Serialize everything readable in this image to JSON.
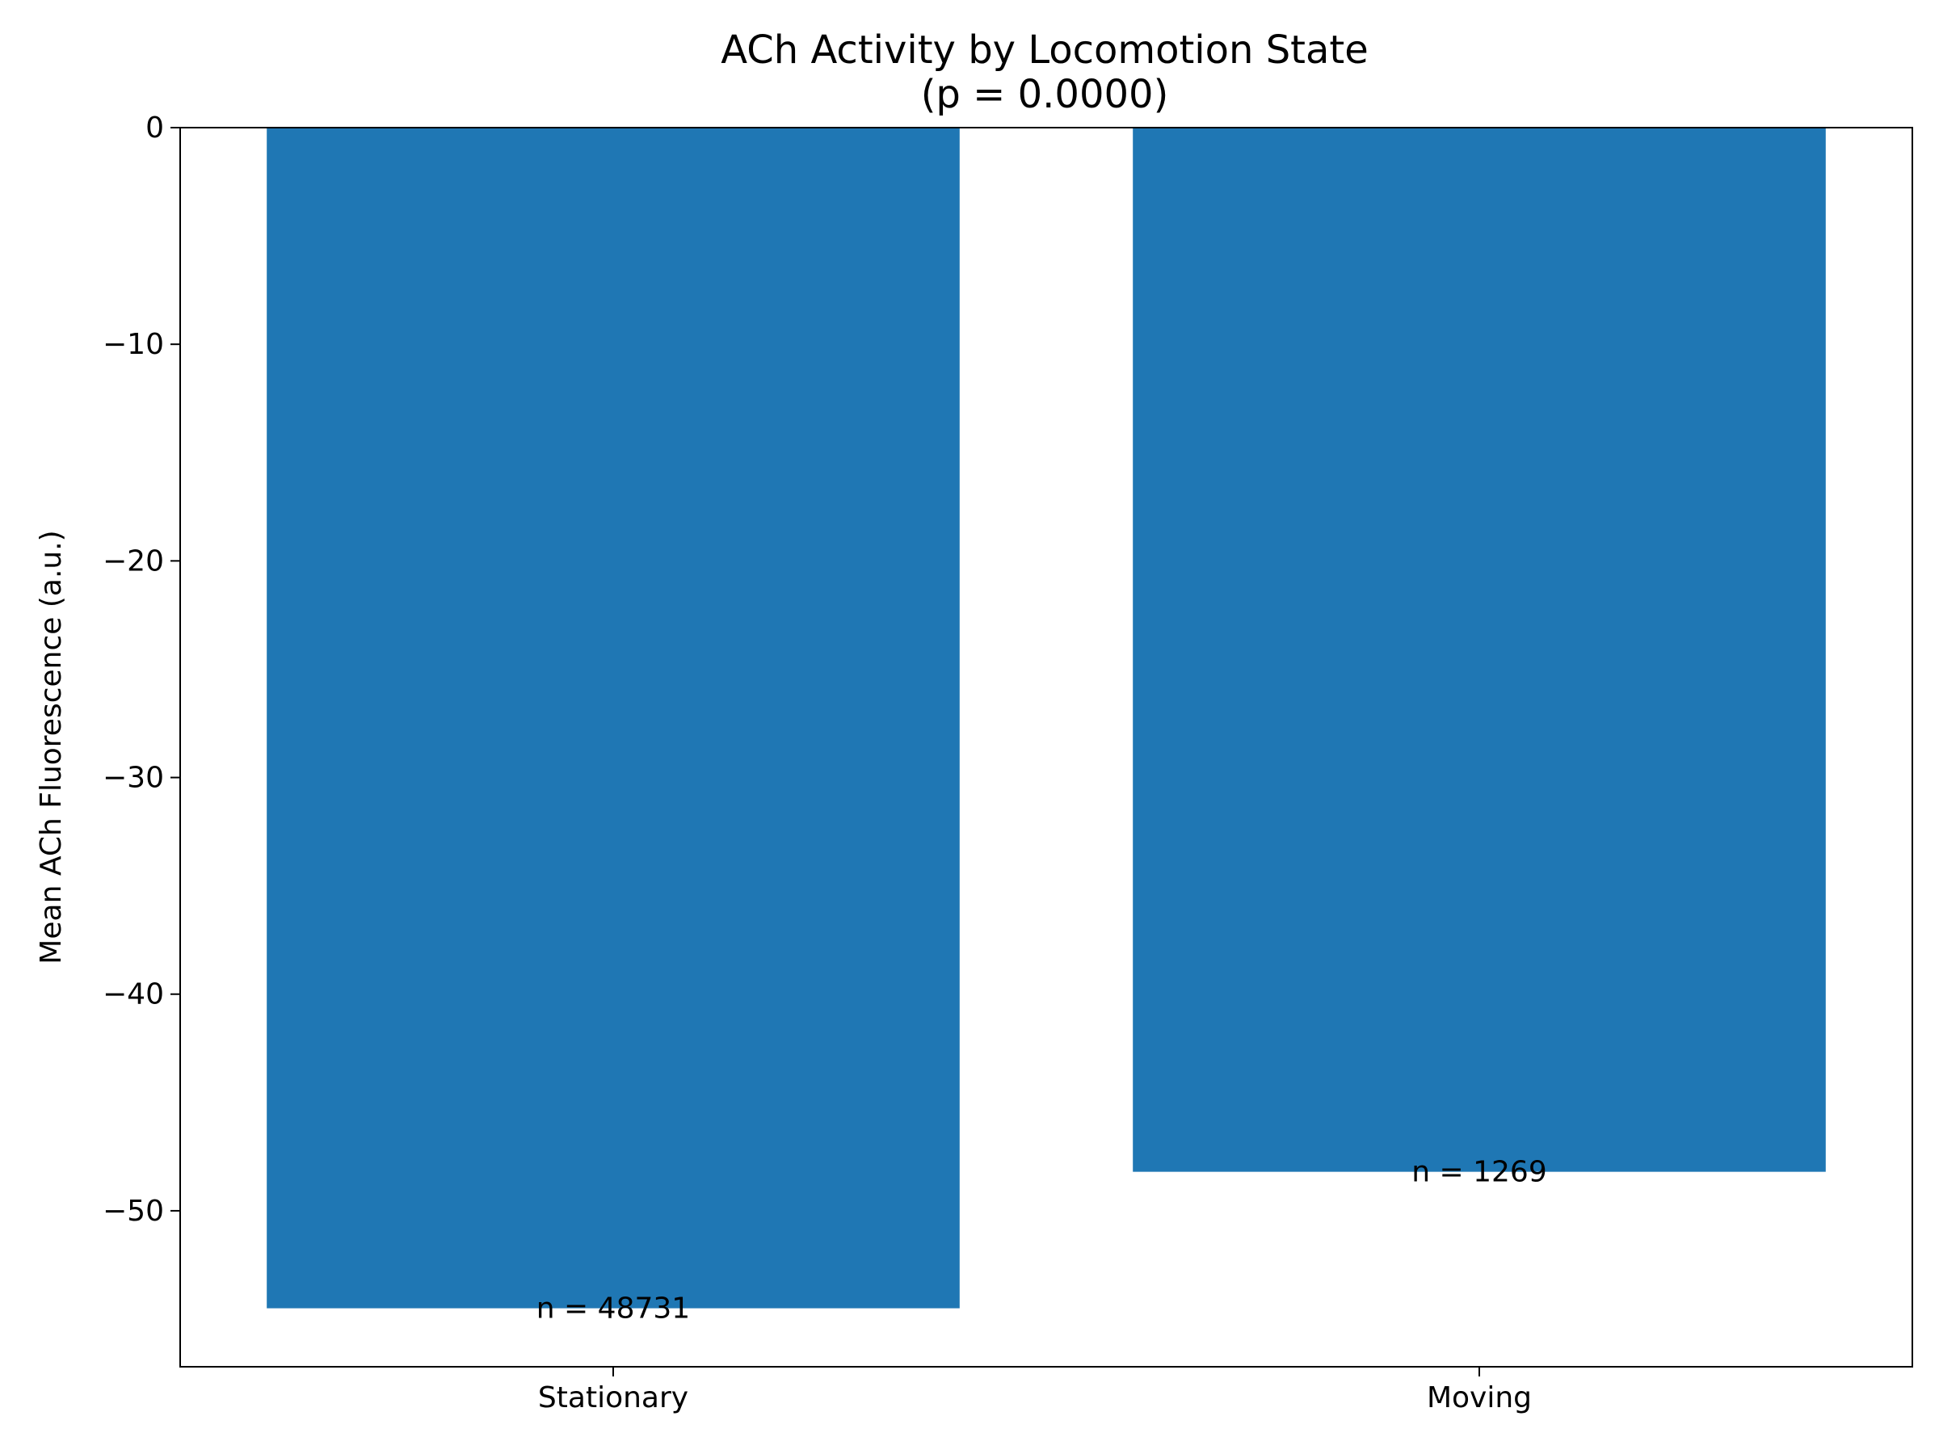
{
  "chart_data": {
    "type": "bar",
    "title": "ACh Activity by Locomotion State",
    "subtitle": "(p = 0.0000)",
    "xlabel": "",
    "ylabel": "Mean ACh Fluorescence (a.u.)",
    "categories": [
      "Stationary",
      "Moving"
    ],
    "values": [
      -54.5,
      -48.2
    ],
    "annotations": [
      "n = 48731",
      "n = 1269"
    ],
    "ylim": [
      -57.2,
      0
    ],
    "yticks": [
      0,
      -10,
      -20,
      -30,
      -40,
      -50
    ],
    "ytick_labels": [
      "0",
      "−10",
      "−20",
      "−30",
      "−40",
      "−50"
    ],
    "bar_color": "#1f77b4",
    "grid": false,
    "legend": "none"
  }
}
